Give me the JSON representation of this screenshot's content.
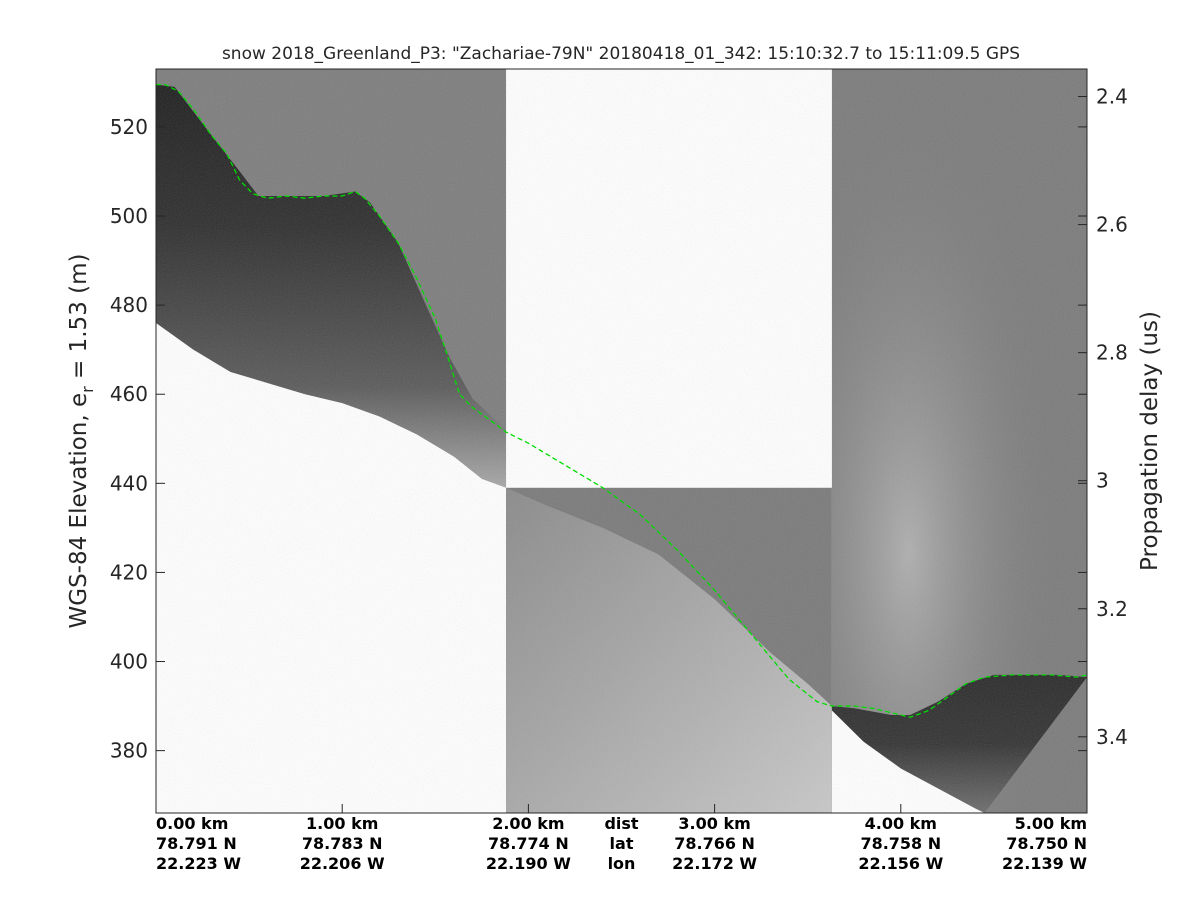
{
  "chart_data": {
    "type": "heatmap",
    "title": "snow 2018_Greenland_P3: \"Zachariae-79N\"  20180418_01_342: 15:10:32.7 to 15:11:09.5 GPS",
    "ylabel_left_prefix": "WGS-84 Elevation, e",
    "ylabel_left_sub": "r",
    "ylabel_left_suffix": " = 1.53 (m)",
    "ylabel_right": "Propagation delay (us)",
    "xlim": [
      0,
      5
    ],
    "ylim_left": [
      366,
      533
    ],
    "ylim_right": [
      2.357,
      3.519
    ],
    "left_ticks": [
      {
        "v": 380,
        "label": "380"
      },
      {
        "v": 400,
        "label": "400"
      },
      {
        "v": 420,
        "label": "420"
      },
      {
        "v": 440,
        "label": "440"
      },
      {
        "v": 460,
        "label": "460"
      },
      {
        "v": 480,
        "label": "480"
      },
      {
        "v": 500,
        "label": "500"
      },
      {
        "v": 520,
        "label": "520"
      }
    ],
    "right_ticks": [
      {
        "v": 2.4,
        "label": "2.4"
      },
      {
        "v": 2.6,
        "label": "2.6"
      },
      {
        "v": 2.8,
        "label": "2.8"
      },
      {
        "v": 3.0,
        "label": "3"
      },
      {
        "v": 3.2,
        "label": "3.2"
      },
      {
        "v": 3.4,
        "label": "3.4"
      }
    ],
    "x_ticks": [
      {
        "v": 0,
        "dist": "0.00 km",
        "lat": "78.791 N",
        "lon": "22.223 W"
      },
      {
        "v": 1,
        "dist": "1.00 km",
        "lat": "78.783 N",
        "lon": "22.206 W"
      },
      {
        "v": 2,
        "dist": "2.00 km",
        "lat": "78.774 N",
        "lon": "22.190 W"
      },
      {
        "v": 3,
        "dist": "3.00 km",
        "lat": "78.766 N",
        "lon": "22.172 W"
      },
      {
        "v": 4,
        "dist": "4.00 km",
        "lat": "78.758 N",
        "lon": "22.156 W"
      },
      {
        "v": 5,
        "dist": "5.00 km",
        "lat": "78.750 N",
        "lon": "22.139 W"
      }
    ],
    "row_labels": {
      "dist": "dist",
      "lat": "lat",
      "lon": "lon"
    },
    "row_labels_x": 2.5,
    "gap_segment": [
      1.88,
      3.63
    ],
    "segments": [
      {
        "x0": 0,
        "x1": 1.88,
        "background": "#7d7d7d",
        "top": [
          [
            0,
            529.5
          ],
          [
            0.1,
            529
          ],
          [
            0.3,
            518
          ],
          [
            0.45,
            510
          ],
          [
            0.55,
            504.5
          ],
          [
            0.7,
            504.5
          ],
          [
            0.9,
            504.5
          ],
          [
            1.07,
            505.5
          ],
          [
            1.15,
            503
          ],
          [
            1.3,
            494
          ],
          [
            1.45,
            480
          ],
          [
            1.58,
            468
          ],
          [
            1.7,
            459
          ],
          [
            1.88,
            452
          ]
        ],
        "bottom": [
          [
            0,
            476
          ],
          [
            0.2,
            470
          ],
          [
            0.4,
            465
          ],
          [
            0.6,
            462.5
          ],
          [
            0.8,
            460
          ],
          [
            1.0,
            458
          ],
          [
            1.2,
            455
          ],
          [
            1.4,
            451
          ],
          [
            1.6,
            446
          ],
          [
            1.75,
            441
          ],
          [
            1.88,
            439
          ]
        ]
      },
      {
        "x0": 1.88,
        "x1": 3.63,
        "background": "#7a7a7a",
        "top": [
          [
            1.88,
            439
          ],
          [
            2.1,
            435
          ],
          [
            2.4,
            430
          ],
          [
            2.7,
            424
          ],
          [
            3.0,
            414
          ],
          [
            3.3,
            402
          ],
          [
            3.5,
            395
          ],
          [
            3.63,
            390
          ]
        ],
        "bottom": [
          [
            1.88,
            366
          ],
          [
            3.63,
            366
          ]
        ]
      },
      {
        "x0": 3.63,
        "x1": 5.0,
        "background": "#7b7b7b",
        "top": [
          [
            3.63,
            390
          ],
          [
            3.75,
            389.5
          ],
          [
            3.95,
            388
          ],
          [
            4.05,
            388
          ],
          [
            4.2,
            391
          ],
          [
            4.35,
            395
          ],
          [
            4.5,
            397
          ],
          [
            4.7,
            397
          ],
          [
            4.85,
            397
          ],
          [
            5.0,
            396.5
          ]
        ],
        "bottom": [
          [
            3.63,
            389
          ],
          [
            3.8,
            382
          ],
          [
            4.0,
            376
          ],
          [
            4.2,
            371.5
          ],
          [
            4.4,
            367
          ],
          [
            4.45,
            366
          ]
        ]
      }
    ],
    "surface_line": {
      "color": "#00dd00",
      "points": [
        [
          0,
          529.5
        ],
        [
          0.05,
          529.5
        ],
        [
          0.12,
          528
        ],
        [
          0.2,
          524
        ],
        [
          0.3,
          518
        ],
        [
          0.38,
          514
        ],
        [
          0.45,
          508
        ],
        [
          0.52,
          505
        ],
        [
          0.6,
          504
        ],
        [
          0.7,
          504.5
        ],
        [
          0.8,
          504
        ],
        [
          0.9,
          504.5
        ],
        [
          1.0,
          504.5
        ],
        [
          1.07,
          505.5
        ],
        [
          1.12,
          504
        ],
        [
          1.2,
          500
        ],
        [
          1.3,
          494
        ],
        [
          1.4,
          486
        ],
        [
          1.5,
          477
        ],
        [
          1.57,
          468
        ],
        [
          1.63,
          460
        ],
        [
          1.7,
          457
        ],
        [
          1.8,
          454
        ],
        [
          1.88,
          451.5
        ],
        [
          2.0,
          449
        ],
        [
          2.2,
          444
        ],
        [
          2.4,
          439
        ],
        [
          2.6,
          433
        ],
        [
          2.8,
          425
        ],
        [
          3.0,
          416
        ],
        [
          3.2,
          406
        ],
        [
          3.4,
          396
        ],
        [
          3.55,
          391
        ],
        [
          3.63,
          390
        ],
        [
          3.75,
          390
        ],
        [
          3.85,
          389.5
        ],
        [
          3.95,
          388.5
        ],
        [
          4.05,
          387.5
        ],
        [
          4.15,
          389
        ],
        [
          4.25,
          392
        ],
        [
          4.35,
          395
        ],
        [
          4.45,
          396.5
        ],
        [
          4.6,
          397
        ],
        [
          4.8,
          397
        ],
        [
          4.95,
          396.5
        ],
        [
          5.0,
          397
        ]
      ]
    }
  }
}
